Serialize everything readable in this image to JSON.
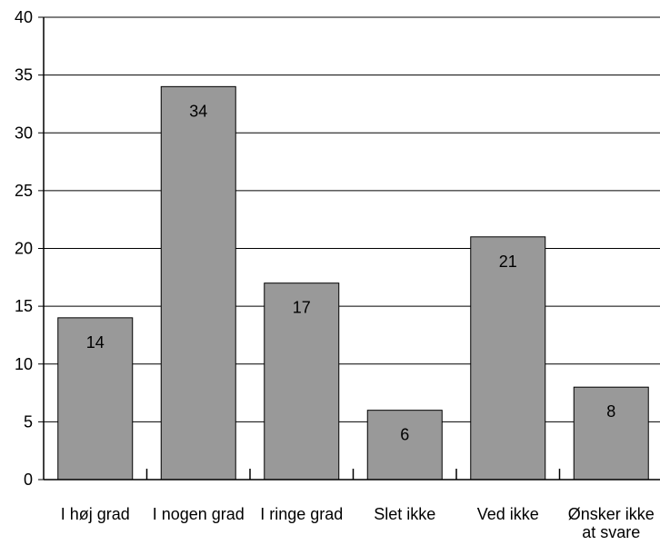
{
  "chart_data": {
    "type": "bar",
    "title": "",
    "xlabel": "",
    "ylabel": "",
    "ylim": [
      0,
      40
    ],
    "yticks": [
      0,
      5,
      10,
      15,
      20,
      25,
      30,
      35,
      40
    ],
    "grid": true,
    "categories": [
      "I høj grad",
      "I nogen grad",
      "I ringe grad",
      "Slet ikke",
      "Ved ikke",
      "Ønsker ikke at svare"
    ],
    "values": [
      14,
      34,
      17,
      6,
      21,
      8
    ],
    "data_labels": [
      "14",
      "34",
      "17",
      "6",
      "21",
      "8"
    ],
    "colors": {
      "bar_fill": "#999999",
      "bar_stroke": "#000000",
      "grid": "#000000",
      "text": "#000000"
    }
  }
}
